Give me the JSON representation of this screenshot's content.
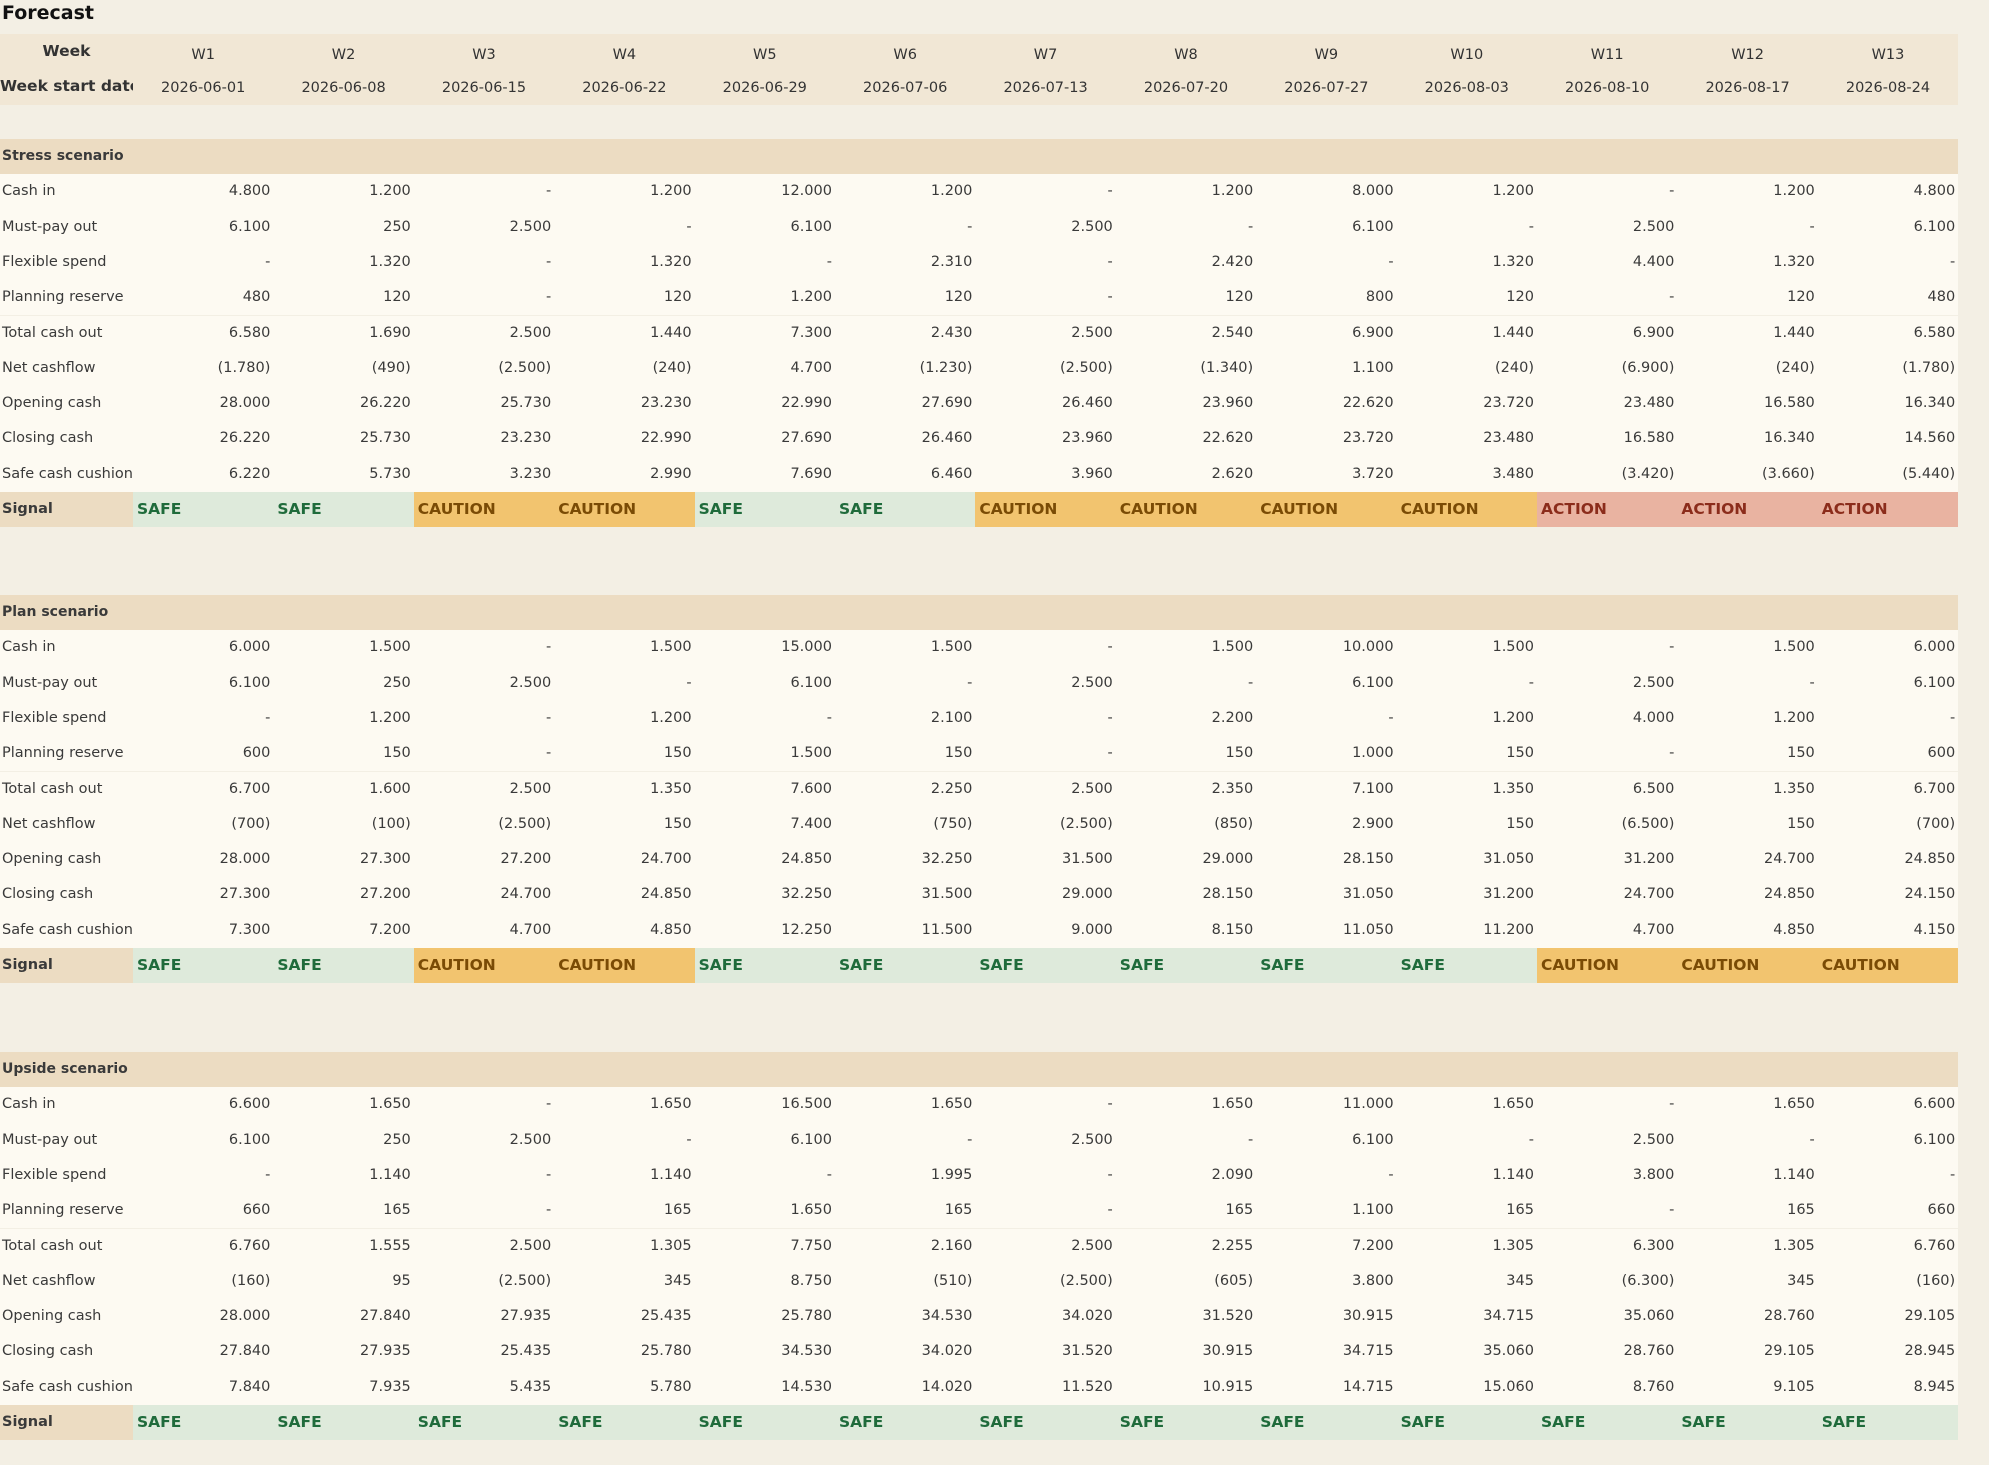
{
  "title": "Forecast",
  "header": {
    "week_label": "Week",
    "weeks": [
      "W1",
      "W2",
      "W3",
      "W4",
      "W5",
      "W6",
      "W7",
      "W8",
      "W9",
      "W10",
      "W11",
      "W12",
      "W13"
    ],
    "date_label": "Week start date",
    "dates": [
      "2026-06-01",
      "2026-06-08",
      "2026-06-15",
      "2026-06-22",
      "2026-06-29",
      "2026-07-06",
      "2026-07-13",
      "2026-07-20",
      "2026-07-27",
      "2026-08-03",
      "2026-08-10",
      "2026-08-17",
      "2026-08-24"
    ]
  },
  "signal_styles": {
    "SAFE": {
      "bg": "#deeadb",
      "fg": "#1f6b3b"
    },
    "CAUTION": {
      "bg": "#f2c46f",
      "fg": "#7a4b05"
    },
    "ACTION": {
      "bg": "#e9b3a1",
      "fg": "#8b2c1b"
    }
  },
  "sections": [
    {
      "title": "Stress scenario",
      "rows": [
        {
          "label": "Cash in",
          "cells": [
            "4.800",
            "1.200",
            "-",
            "1.200",
            "12.000",
            "1.200",
            "-",
            "1.200",
            "8.000",
            "1.200",
            "-",
            "1.200",
            "4.800"
          ]
        },
        {
          "label": "Must-pay out",
          "cells": [
            "6.100",
            "250",
            "2.500",
            "-",
            "6.100",
            "-",
            "2.500",
            "-",
            "6.100",
            "-",
            "2.500",
            "-",
            "6.100"
          ]
        },
        {
          "label": "Flexible spend",
          "cells": [
            "-",
            "1.320",
            "-",
            "1.320",
            "-",
            "2.310",
            "-",
            "2.420",
            "-",
            "1.320",
            "4.400",
            "1.320",
            "-"
          ]
        },
        {
          "label": "Planning reserve",
          "cells": [
            "480",
            "120",
            "-",
            "120",
            "1.200",
            "120",
            "-",
            "120",
            "800",
            "120",
            "-",
            "120",
            "480"
          ]
        },
        {
          "label": "Total cash out",
          "cells": [
            "6.580",
            "1.690",
            "2.500",
            "1.440",
            "7.300",
            "2.430",
            "2.500",
            "2.540",
            "6.900",
            "1.440",
            "6.900",
            "1.440",
            "6.580"
          ]
        },
        {
          "label": "Net cashflow",
          "cells": [
            "(1.780)",
            "(490)",
            "(2.500)",
            "(240)",
            "4.700",
            "(1.230)",
            "(2.500)",
            "(1.340)",
            "1.100",
            "(240)",
            "(6.900)",
            "(240)",
            "(1.780)"
          ]
        },
        {
          "label": "Opening cash",
          "cells": [
            "28.000",
            "26.220",
            "25.730",
            "23.230",
            "22.990",
            "27.690",
            "26.460",
            "23.960",
            "22.620",
            "23.720",
            "23.480",
            "16.580",
            "16.340"
          ]
        },
        {
          "label": "Closing cash",
          "cells": [
            "26.220",
            "25.730",
            "23.230",
            "22.990",
            "27.690",
            "26.460",
            "23.960",
            "22.620",
            "23.720",
            "23.480",
            "16.580",
            "16.340",
            "14.560"
          ]
        },
        {
          "label": "Safe cash cushion",
          "cells": [
            "6.220",
            "5.730",
            "3.230",
            "2.990",
            "7.690",
            "6.460",
            "3.960",
            "2.620",
            "3.720",
            "3.480",
            "(3.420)",
            "(3.660)",
            "(5.440)"
          ]
        }
      ],
      "signal": {
        "label": "Signal",
        "cells": [
          "SAFE",
          "SAFE",
          "CAUTION",
          "CAUTION",
          "SAFE",
          "SAFE",
          "CAUTION",
          "CAUTION",
          "CAUTION",
          "CAUTION",
          "ACTION",
          "ACTION",
          "ACTION"
        ]
      }
    },
    {
      "title": "Plan scenario",
      "rows": [
        {
          "label": "Cash in",
          "cells": [
            "6.000",
            "1.500",
            "-",
            "1.500",
            "15.000",
            "1.500",
            "-",
            "1.500",
            "10.000",
            "1.500",
            "-",
            "1.500",
            "6.000"
          ]
        },
        {
          "label": "Must-pay out",
          "cells": [
            "6.100",
            "250",
            "2.500",
            "-",
            "6.100",
            "-",
            "2.500",
            "-",
            "6.100",
            "-",
            "2.500",
            "-",
            "6.100"
          ]
        },
        {
          "label": "Flexible spend",
          "cells": [
            "-",
            "1.200",
            "-",
            "1.200",
            "-",
            "2.100",
            "-",
            "2.200",
            "-",
            "1.200",
            "4.000",
            "1.200",
            "-"
          ]
        },
        {
          "label": "Planning reserve",
          "cells": [
            "600",
            "150",
            "-",
            "150",
            "1.500",
            "150",
            "-",
            "150",
            "1.000",
            "150",
            "-",
            "150",
            "600"
          ]
        },
        {
          "label": "Total cash out",
          "cells": [
            "6.700",
            "1.600",
            "2.500",
            "1.350",
            "7.600",
            "2.250",
            "2.500",
            "2.350",
            "7.100",
            "1.350",
            "6.500",
            "1.350",
            "6.700"
          ]
        },
        {
          "label": "Net cashflow",
          "cells": [
            "(700)",
            "(100)",
            "(2.500)",
            "150",
            "7.400",
            "(750)",
            "(2.500)",
            "(850)",
            "2.900",
            "150",
            "(6.500)",
            "150",
            "(700)"
          ]
        },
        {
          "label": "Opening cash",
          "cells": [
            "28.000",
            "27.300",
            "27.200",
            "24.700",
            "24.850",
            "32.250",
            "31.500",
            "29.000",
            "28.150",
            "31.050",
            "31.200",
            "24.700",
            "24.850"
          ]
        },
        {
          "label": "Closing cash",
          "cells": [
            "27.300",
            "27.200",
            "24.700",
            "24.850",
            "32.250",
            "31.500",
            "29.000",
            "28.150",
            "31.050",
            "31.200",
            "24.700",
            "24.850",
            "24.150"
          ]
        },
        {
          "label": "Safe cash cushion",
          "cells": [
            "7.300",
            "7.200",
            "4.700",
            "4.850",
            "12.250",
            "11.500",
            "9.000",
            "8.150",
            "11.050",
            "11.200",
            "4.700",
            "4.850",
            "4.150"
          ]
        }
      ],
      "signal": {
        "label": "Signal",
        "cells": [
          "SAFE",
          "SAFE",
          "CAUTION",
          "CAUTION",
          "SAFE",
          "SAFE",
          "SAFE",
          "SAFE",
          "SAFE",
          "SAFE",
          "CAUTION",
          "CAUTION",
          "CAUTION"
        ]
      }
    },
    {
      "title": "Upside scenario",
      "rows": [
        {
          "label": "Cash in",
          "cells": [
            "6.600",
            "1.650",
            "-",
            "1.650",
            "16.500",
            "1.650",
            "-",
            "1.650",
            "11.000",
            "1.650",
            "-",
            "1.650",
            "6.600"
          ]
        },
        {
          "label": "Must-pay out",
          "cells": [
            "6.100",
            "250",
            "2.500",
            "-",
            "6.100",
            "-",
            "2.500",
            "-",
            "6.100",
            "-",
            "2.500",
            "-",
            "6.100"
          ]
        },
        {
          "label": "Flexible spend",
          "cells": [
            "-",
            "1.140",
            "-",
            "1.140",
            "-",
            "1.995",
            "-",
            "2.090",
            "-",
            "1.140",
            "3.800",
            "1.140",
            "-"
          ]
        },
        {
          "label": "Planning reserve",
          "cells": [
            "660",
            "165",
            "-",
            "165",
            "1.650",
            "165",
            "-",
            "165",
            "1.100",
            "165",
            "-",
            "165",
            "660"
          ]
        },
        {
          "label": "Total cash out",
          "cells": [
            "6.760",
            "1.555",
            "2.500",
            "1.305",
            "7.750",
            "2.160",
            "2.500",
            "2.255",
            "7.200",
            "1.305",
            "6.300",
            "1.305",
            "6.760"
          ]
        },
        {
          "label": "Net cashflow",
          "cells": [
            "(160)",
            "95",
            "(2.500)",
            "345",
            "8.750",
            "(510)",
            "(2.500)",
            "(605)",
            "3.800",
            "345",
            "(6.300)",
            "345",
            "(160)"
          ]
        },
        {
          "label": "Opening cash",
          "cells": [
            "28.000",
            "27.840",
            "27.935",
            "25.435",
            "25.780",
            "34.530",
            "34.020",
            "31.520",
            "30.915",
            "34.715",
            "35.060",
            "28.760",
            "29.105"
          ]
        },
        {
          "label": "Closing cash",
          "cells": [
            "27.840",
            "27.935",
            "25.435",
            "25.780",
            "34.530",
            "34.020",
            "31.520",
            "30.915",
            "34.715",
            "35.060",
            "28.760",
            "29.105",
            "28.945"
          ]
        },
        {
          "label": "Safe cash cushion",
          "cells": [
            "7.840",
            "7.935",
            "5.435",
            "5.780",
            "14.530",
            "14.020",
            "11.520",
            "10.915",
            "14.715",
            "15.060",
            "8.760",
            "9.105",
            "8.945"
          ]
        }
      ],
      "signal": {
        "label": "Signal",
        "cells": [
          "SAFE",
          "SAFE",
          "SAFE",
          "SAFE",
          "SAFE",
          "SAFE",
          "SAFE",
          "SAFE",
          "SAFE",
          "SAFE",
          "SAFE",
          "SAFE",
          "SAFE"
        ]
      }
    }
  ]
}
